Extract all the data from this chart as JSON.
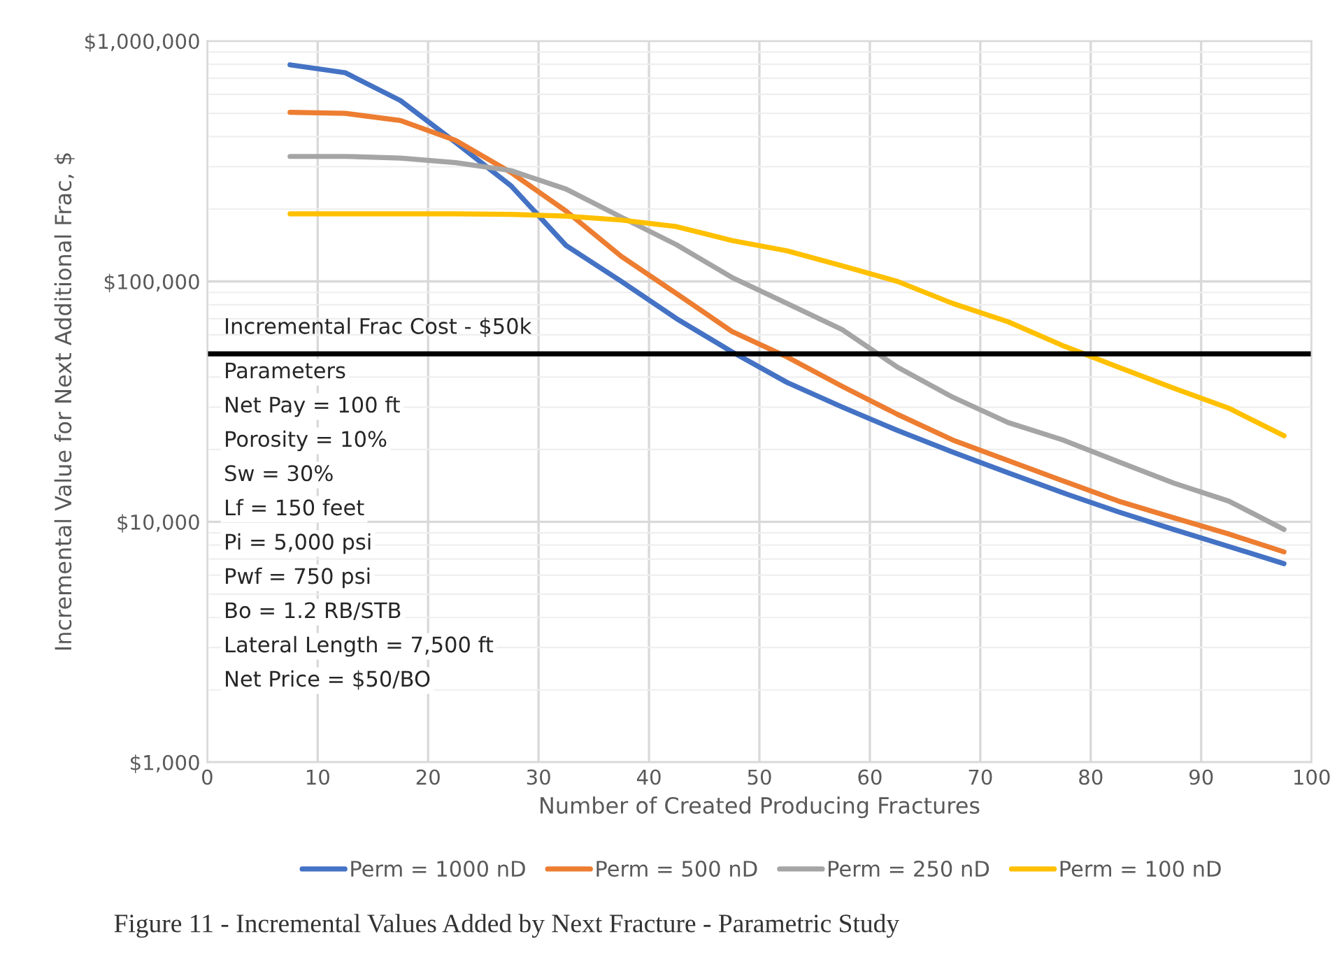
{
  "chart_data": {
    "type": "line",
    "xlabel": "Number of Created Producing Fractures",
    "ylabel": "Incremental Value for Next Additional Frac, $",
    "x": [
      7.5,
      12.5,
      17.5,
      22.5,
      27.5,
      32.5,
      37.5,
      42.5,
      47.5,
      52.5,
      57.5,
      62.5,
      67.5,
      72.5,
      77.5,
      82.5,
      87.5,
      92.5,
      97.5
    ],
    "series": [
      {
        "name": "Perm = 1000 nD",
        "color": "#4472c4",
        "values": [
          796000,
          738000,
          565000,
          378000,
          250000,
          141000,
          100000,
          70000,
          51000,
          38000,
          30000,
          24000,
          19500,
          16000,
          13200,
          11000,
          9300,
          7900,
          6700
        ]
      },
      {
        "name": "Perm = 500 nD",
        "color": "#ed7d31",
        "values": [
          505000,
          500000,
          467000,
          386000,
          284000,
          196000,
          127000,
          89000,
          62000,
          48500,
          36600,
          28000,
          21900,
          18000,
          14800,
          12200,
          10400,
          8900,
          7500
        ]
      },
      {
        "name": "Perm = 250 nD",
        "color": "#a5a5a5",
        "values": [
          331000,
          331000,
          326000,
          312000,
          289000,
          242000,
          185000,
          142000,
          104000,
          81000,
          63000,
          44000,
          33000,
          25900,
          21900,
          17800,
          14500,
          12200,
          9300
        ]
      },
      {
        "name": "Perm = 100 nD",
        "color": "#ffc000",
        "values": [
          191000,
          191000,
          191000,
          191000,
          190000,
          187000,
          180000,
          169000,
          148000,
          134000,
          116000,
          100000,
          81000,
          68000,
          54000,
          44000,
          36000,
          29700,
          22800
        ]
      }
    ],
    "log": "y",
    "xlim": [
      0,
      100
    ],
    "xticks": [
      0,
      10,
      20,
      30,
      40,
      50,
      60,
      70,
      80,
      90,
      100
    ],
    "ylim": [
      1000,
      1000000
    ],
    "yticks": [
      {
        "value": 1000,
        "label": "$1,000"
      },
      {
        "value": 10000,
        "label": "$10,000"
      },
      {
        "value": 100000,
        "label": "$100,000"
      },
      {
        "value": 1000000,
        "label": "$1,000,000"
      }
    ],
    "grid": true,
    "legend": "bottom",
    "marker": "none",
    "line_style": "solid",
    "ref_lines": [
      {
        "axis": "y",
        "value": 50000,
        "label": "Incremental Frac Cost - $50k",
        "color": "#000000"
      }
    ],
    "annotations": [
      "Parameters",
      "Net Pay = 100 ft",
      "Porosity = 10%",
      "Sw = 30%",
      "Lf = 150 feet",
      "Pi = 5,000 psi",
      "Pwf = 750 psi",
      "Bo = 1.2 RB/STB",
      "Lateral Length = 7,500 ft",
      "Net Price = $50/BO",
      "Figure 11 - Incremental Values Added by Next Fracture - Parametric Study"
    ]
  }
}
